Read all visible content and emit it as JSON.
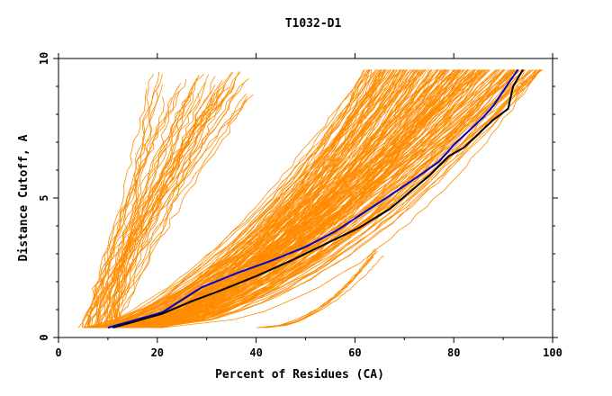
{
  "chart_data": {
    "type": "line",
    "title": "T1032-D1",
    "xlabel": "Percent of Residues (CA)",
    "ylabel": "Distance Cutoff, A",
    "xlim": [
      0,
      100
    ],
    "ylim": [
      0,
      10
    ],
    "x_ticks": [
      0,
      20,
      40,
      60,
      80,
      100
    ],
    "y_ticks": [
      0,
      5,
      10
    ],
    "grid": false,
    "legend": "none",
    "colors": {
      "models": "#ff8c00",
      "highlight_blue": "#0000cc",
      "highlight_black": "#000000"
    },
    "series": [
      {
        "color": "#0000cc",
        "x": [
          10,
          14,
          21,
          25,
          29,
          36,
          43,
          50,
          56,
          62,
          68,
          73,
          77,
          80,
          83,
          86,
          88,
          91,
          93
        ],
        "y": [
          0.35,
          0.55,
          0.9,
          1.35,
          1.8,
          2.3,
          2.75,
          3.25,
          3.8,
          4.5,
          5.2,
          5.8,
          6.3,
          6.9,
          7.4,
          7.9,
          8.3,
          9.1,
          9.6
        ]
      },
      {
        "color": "#000000",
        "x": [
          11,
          15,
          21,
          27,
          33,
          40,
          47,
          54,
          61,
          67,
          71,
          75,
          79,
          82,
          85,
          88,
          91,
          92,
          94
        ],
        "y": [
          0.35,
          0.55,
          0.85,
          1.3,
          1.7,
          2.2,
          2.75,
          3.35,
          3.95,
          4.6,
          5.2,
          5.8,
          6.5,
          6.8,
          7.3,
          7.8,
          8.2,
          9.0,
          9.6
        ]
      }
    ]
  }
}
